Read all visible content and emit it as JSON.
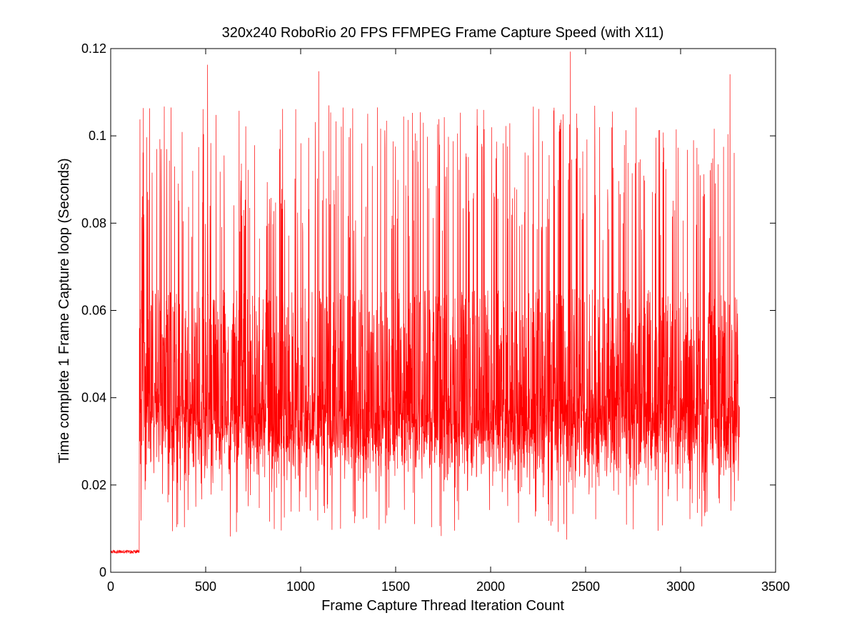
{
  "chart_data": {
    "type": "line",
    "title": "320x240 RoboRio 20 FPS FFMPEG Frame Capture Speed (with X11)",
    "xlabel": "Frame Capture Thread Iteration Count",
    "ylabel": "Time complete 1 Frame Capture loop (Seconds)",
    "xlim": [
      0,
      3500
    ],
    "ylim": [
      0,
      0.12
    ],
    "xticks": [
      0,
      500,
      1000,
      1500,
      2000,
      2500,
      3000,
      3500
    ],
    "yticks": [
      0,
      0.02,
      0.04,
      0.06,
      0.08,
      0.1,
      0.12
    ],
    "xtick_labels": [
      "0",
      "500",
      "1000",
      "1500",
      "2000",
      "2500",
      "3000",
      "3500"
    ],
    "ytick_labels": [
      "0",
      "0.02",
      "0.04",
      "0.06",
      "0.08",
      "0.1",
      "0.12"
    ],
    "grid": false,
    "series": [
      {
        "color": "#ff0000",
        "x_start": 1,
        "x_end": 3310,
        "phases": [
          {
            "x_from": 1,
            "x_to": 150,
            "baseline": 0.0047,
            "min": 0.0043,
            "max": 0.0088
          },
          {
            "x_from": 151,
            "x_to": 3310,
            "typical_low": 0.019,
            "typical_high": 0.063,
            "center": 0.033,
            "min": 0.0075,
            "max": 0.119
          }
        ],
        "notable_peaks": [
          {
            "x": 510,
            "y": 0.1163
          },
          {
            "x": 1095,
            "y": 0.1148
          },
          {
            "x": 2420,
            "y": 0.1193
          },
          {
            "x": 3260,
            "y": 0.1141
          }
        ],
        "notable_troughs": [
          {
            "x": 630,
            "y": 0.0082
          },
          {
            "x": 1740,
            "y": 0.0083
          },
          {
            "x": 2400,
            "y": 0.0075
          }
        ]
      }
    ]
  }
}
